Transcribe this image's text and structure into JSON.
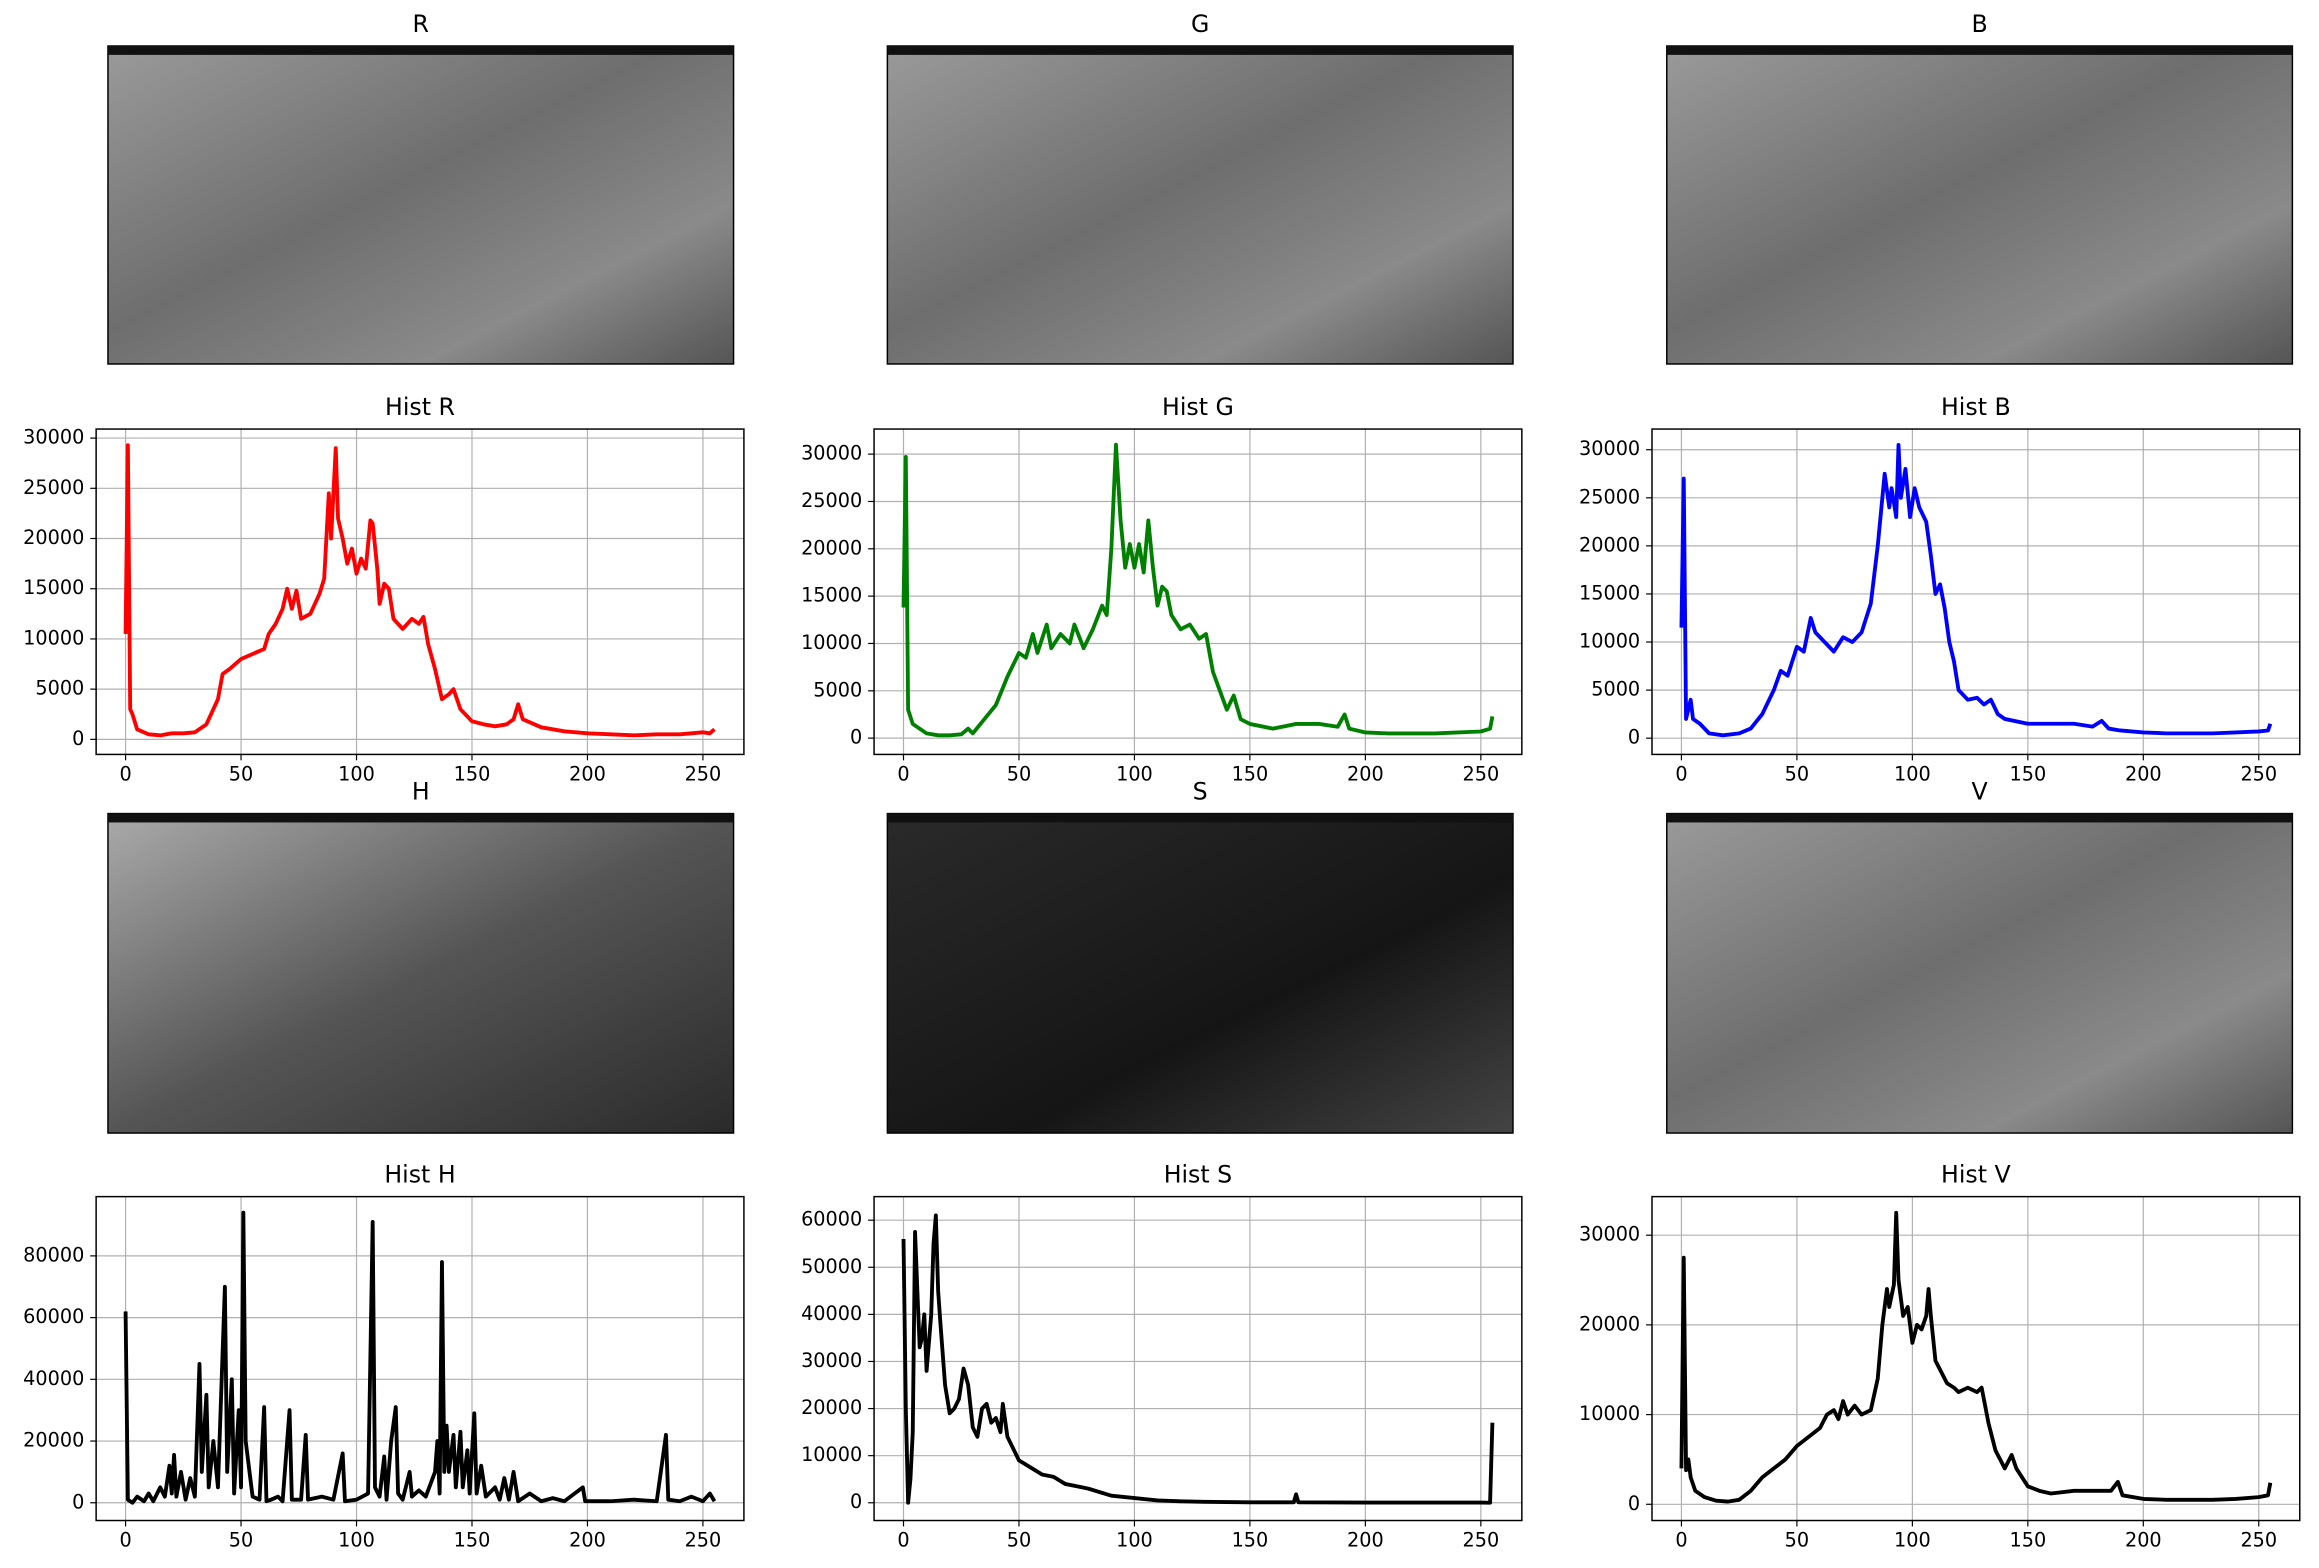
{
  "chart_data": [
    {
      "type": "image",
      "title": "R"
    },
    {
      "type": "image",
      "title": "G"
    },
    {
      "type": "image",
      "title": "B"
    },
    {
      "type": "line",
      "title": "Hist R",
      "color": "#ff0000",
      "grid": true,
      "x": [
        0,
        1,
        2,
        3,
        5,
        10,
        15,
        20,
        25,
        30,
        35,
        40,
        42,
        45,
        50,
        55,
        60,
        62,
        65,
        68,
        70,
        72,
        74,
        76,
        80,
        84,
        86,
        88,
        89,
        91,
        92,
        94,
        96,
        98,
        100,
        102,
        104,
        106,
        107,
        109,
        110,
        112,
        114,
        116,
        120,
        124,
        127,
        129,
        131,
        134,
        137,
        140,
        142,
        145,
        150,
        155,
        160,
        165,
        168,
        170,
        172,
        180,
        190,
        200,
        210,
        220,
        230,
        240,
        250,
        253,
        255
      ],
      "values": [
        10500,
        29300,
        3000,
        2500,
        1000,
        500,
        400,
        600,
        600,
        700,
        1500,
        4000,
        6500,
        7000,
        8000,
        8500,
        9000,
        10500,
        11500,
        13000,
        15000,
        13000,
        14800,
        12000,
        12500,
        14500,
        16000,
        24500,
        20000,
        29000,
        22000,
        20000,
        17500,
        19000,
        16500,
        18000,
        17000,
        21800,
        21500,
        17000,
        13500,
        15500,
        15000,
        12000,
        11000,
        12000,
        11500,
        12200,
        9500,
        7000,
        4000,
        4500,
        5000,
        3000,
        1800,
        1500,
        1300,
        1500,
        2000,
        3500,
        2000,
        1200,
        800,
        600,
        500,
        400,
        500,
        500,
        700,
        600,
        1000
      ],
      "xlim": [
        -12.75,
        267.75
      ],
      "xticks": [
        0,
        50,
        100,
        150,
        200,
        250
      ],
      "ylim": [
        -1500,
        30900
      ],
      "yticks": [
        0,
        5000,
        10000,
        15000,
        20000,
        25000,
        30000
      ]
    },
    {
      "type": "line",
      "title": "Hist G",
      "color": "#008000",
      "grid": true,
      "x": [
        0,
        1,
        2,
        4,
        10,
        15,
        20,
        25,
        28,
        30,
        35,
        40,
        45,
        50,
        53,
        56,
        58,
        62,
        64,
        68,
        72,
        74,
        78,
        82,
        86,
        88,
        90,
        92,
        94,
        96,
        98,
        100,
        102,
        104,
        106,
        108,
        110,
        112,
        114,
        116,
        120,
        124,
        128,
        131,
        134,
        137,
        140,
        143,
        146,
        150,
        160,
        170,
        180,
        188,
        191,
        193,
        200,
        210,
        220,
        230,
        240,
        250,
        254,
        255
      ],
      "values": [
        13800,
        29700,
        3000,
        1500,
        500,
        300,
        300,
        400,
        1000,
        500,
        2000,
        3500,
        6500,
        9000,
        8500,
        11000,
        9000,
        12000,
        9500,
        11000,
        10000,
        12000,
        9500,
        11500,
        14000,
        13000,
        20000,
        31000,
        23000,
        18000,
        20500,
        18000,
        20500,
        17500,
        23000,
        18000,
        14000,
        16000,
        15500,
        13000,
        11500,
        12000,
        10500,
        11000,
        7000,
        5000,
        3000,
        4500,
        2000,
        1500,
        1000,
        1500,
        1500,
        1200,
        2500,
        1000,
        600,
        500,
        500,
        500,
        600,
        700,
        1000,
        2300
      ],
      "xlim": [
        -12.75,
        267.75
      ],
      "xticks": [
        0,
        50,
        100,
        150,
        200,
        250
      ],
      "ylim": [
        -1720,
        32650
      ],
      "yticks": [
        0,
        5000,
        10000,
        15000,
        20000,
        25000,
        30000
      ]
    },
    {
      "type": "line",
      "title": "Hist B",
      "color": "#0000ff",
      "grid": true,
      "x": [
        0,
        1,
        2,
        4,
        5,
        8,
        12,
        18,
        25,
        30,
        35,
        40,
        43,
        46,
        50,
        53,
        56,
        58,
        62,
        66,
        70,
        74,
        78,
        82,
        85,
        87,
        88,
        90,
        91,
        93,
        94,
        95,
        97,
        99,
        101,
        103,
        106,
        108,
        110,
        112,
        114,
        116,
        118,
        120,
        124,
        128,
        131,
        134,
        137,
        140,
        150,
        160,
        170,
        178,
        182,
        185,
        190,
        200,
        210,
        220,
        230,
        240,
        250,
        254,
        255
      ],
      "values": [
        11500,
        27000,
        2000,
        4000,
        2000,
        1500,
        500,
        300,
        500,
        1000,
        2500,
        5000,
        7000,
        6500,
        9500,
        9000,
        12500,
        11000,
        10000,
        9000,
        10500,
        10000,
        11000,
        14000,
        20000,
        25000,
        27500,
        24000,
        26000,
        23000,
        30500,
        25000,
        28000,
        23000,
        26000,
        24000,
        22500,
        19000,
        15000,
        16000,
        13500,
        10000,
        8000,
        5000,
        4000,
        4200,
        3500,
        4000,
        2500,
        2000,
        1500,
        1500,
        1500,
        1200,
        1800,
        1000,
        800,
        600,
        500,
        500,
        500,
        600,
        700,
        800,
        1500
      ],
      "xlim": [
        -12.75,
        267.75
      ],
      "xticks": [
        0,
        50,
        100,
        150,
        200,
        250
      ],
      "ylim": [
        -1690,
        32150
      ],
      "yticks": [
        0,
        5000,
        10000,
        15000,
        20000,
        25000,
        30000
      ]
    },
    {
      "type": "image",
      "title": "H"
    },
    {
      "type": "image",
      "title": "S"
    },
    {
      "type": "image",
      "title": "V"
    },
    {
      "type": "line",
      "title": "Hist H",
      "color": "#000000",
      "grid": true,
      "x": [
        0,
        1,
        3,
        5,
        8,
        10,
        12,
        15,
        17,
        19,
        20,
        21,
        22,
        24,
        26,
        28,
        30,
        32,
        33,
        35,
        36,
        38,
        40,
        43,
        44,
        46,
        47,
        49,
        50,
        51,
        52,
        55,
        58,
        60,
        61,
        63,
        66,
        68,
        71,
        72,
        76,
        78,
        79,
        85,
        90,
        94,
        95,
        100,
        105,
        107,
        108,
        110,
        112,
        113,
        115,
        117,
        118,
        120,
        123,
        124,
        127,
        130,
        134,
        135,
        136,
        137,
        138,
        139,
        140,
        142,
        143,
        145,
        146,
        148,
        149,
        151,
        152,
        154,
        156,
        160,
        162,
        164,
        166,
        168,
        170,
        175,
        180,
        185,
        190,
        198,
        199,
        210,
        220,
        230,
        234,
        235,
        240,
        245,
        250,
        253,
        255
      ],
      "values": [
        62000,
        1000,
        0,
        2000,
        500,
        3000,
        500,
        5000,
        2000,
        12000,
        3000,
        15500,
        2000,
        10000,
        1000,
        8000,
        2000,
        45000,
        10000,
        35000,
        5000,
        20000,
        5000,
        70000,
        10000,
        40000,
        3000,
        30000,
        5000,
        94000,
        20000,
        2000,
        1000,
        31000,
        500,
        1000,
        2000,
        500,
        30000,
        1000,
        1000,
        22000,
        1000,
        2000,
        1000,
        16000,
        500,
        1000,
        3000,
        91000,
        5000,
        2000,
        15000,
        1000,
        20000,
        31000,
        3000,
        1000,
        10000,
        2000,
        4000,
        2000,
        10000,
        20000,
        3000,
        78000,
        10000,
        25000,
        10000,
        22000,
        5000,
        23000,
        5000,
        17000,
        3000,
        29000,
        3000,
        12000,
        2000,
        5000,
        1000,
        8000,
        1000,
        10000,
        500,
        3000,
        500,
        1500,
        500,
        5000,
        500,
        500,
        1000,
        500,
        22000,
        1000,
        500,
        2000,
        500,
        3000,
        500
      ],
      "xlim": [
        -12.75,
        267.75
      ],
      "xticks": [
        0,
        50,
        100,
        150,
        200,
        250
      ],
      "ylim": [
        -5750,
        99200
      ],
      "yticks": [
        0,
        20000,
        40000,
        60000,
        80000
      ]
    },
    {
      "type": "line",
      "title": "Hist S",
      "color": "#000000",
      "grid": true,
      "x": [
        0,
        1,
        2,
        3,
        4,
        5,
        6,
        7,
        8,
        9,
        10,
        12,
        13,
        14,
        15,
        16,
        18,
        20,
        22,
        24,
        26,
        28,
        30,
        32,
        34,
        36,
        38,
        40,
        42,
        43,
        45,
        48,
        50,
        55,
        60,
        65,
        70,
        75,
        80,
        90,
        100,
        110,
        120,
        130,
        150,
        169,
        170,
        171,
        200,
        250,
        254,
        255
      ],
      "values": [
        56000,
        20000,
        0,
        5000,
        15000,
        57500,
        45000,
        33000,
        35000,
        40000,
        28000,
        40000,
        55000,
        61000,
        45000,
        38000,
        25000,
        19000,
        20000,
        22000,
        28500,
        25000,
        16000,
        14000,
        20000,
        21000,
        17000,
        18000,
        15000,
        21000,
        14000,
        11000,
        9000,
        7500,
        6000,
        5500,
        4000,
        3500,
        3000,
        1500,
        1000,
        500,
        300,
        200,
        100,
        100,
        1800,
        100,
        50,
        50,
        0,
        17000
      ],
      "xlim": [
        -12.75,
        267.75
      ],
      "xticks": [
        0,
        50,
        100,
        150,
        200,
        250
      ],
      "ylim": [
        -3770,
        65000
      ],
      "yticks": [
        0,
        10000,
        20000,
        30000,
        40000,
        50000,
        60000
      ]
    },
    {
      "type": "line",
      "title": "Hist V",
      "color": "#000000",
      "grid": true,
      "x": [
        0,
        1,
        2,
        3,
        4,
        6,
        10,
        15,
        20,
        25,
        30,
        35,
        40,
        45,
        50,
        55,
        60,
        63,
        66,
        68,
        70,
        72,
        75,
        78,
        82,
        85,
        87,
        89,
        90,
        92,
        93,
        94,
        96,
        98,
        100,
        102,
        104,
        106,
        107,
        108,
        110,
        112,
        115,
        118,
        120,
        124,
        128,
        130,
        133,
        136,
        140,
        143,
        145,
        150,
        155,
        160,
        170,
        180,
        186,
        189,
        191,
        200,
        210,
        220,
        230,
        240,
        250,
        254,
        255
      ],
      "values": [
        4000,
        27500,
        3800,
        5000,
        3000,
        1500,
        800,
        400,
        300,
        500,
        1500,
        3000,
        4000,
        5000,
        6500,
        7500,
        8500,
        10000,
        10500,
        9500,
        11500,
        10000,
        11000,
        10000,
        10500,
        14000,
        20000,
        24000,
        22000,
        24500,
        32500,
        25000,
        21000,
        22000,
        18000,
        20000,
        19500,
        21000,
        24000,
        21000,
        16000,
        15000,
        13500,
        13000,
        12500,
        13000,
        12500,
        13000,
        9000,
        6000,
        4000,
        5500,
        4000,
        2000,
        1500,
        1200,
        1500,
        1500,
        1500,
        2500,
        1000,
        600,
        500,
        500,
        500,
        600,
        800,
        1000,
        2400
      ],
      "xlim": [
        -12.75,
        267.75
      ],
      "xticks": [
        0,
        50,
        100,
        150,
        200,
        250
      ],
      "ylim": [
        -1810,
        34300
      ],
      "yticks": [
        0,
        10000,
        20000,
        30000
      ]
    }
  ]
}
